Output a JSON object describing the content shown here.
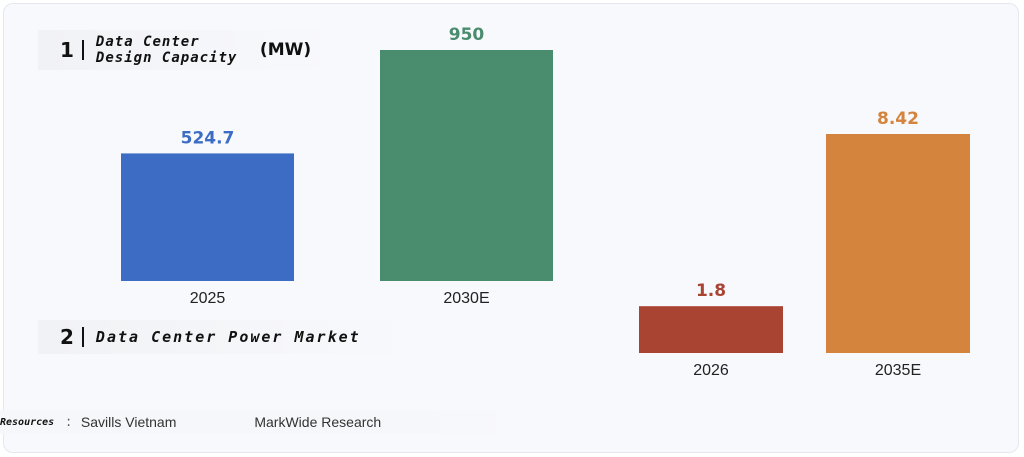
{
  "sections": {
    "one": {
      "number": "1",
      "title": "Data Center Design Capacity",
      "unit": "(MW)"
    },
    "two": {
      "number": "2",
      "title": "Data Center Power Market"
    }
  },
  "sources": {
    "label": "Resources",
    "separator": ":",
    "items": [
      "Savills Vietnam",
      "MarkWide Research"
    ]
  },
  "chart_data": [
    {
      "type": "bar",
      "title": "Data Center Design Capacity",
      "ylabel": "(MW)",
      "categories": [
        "2025",
        "2030E"
      ],
      "values": [
        524.7,
        950
      ],
      "value_labels": [
        "524.7",
        "950"
      ],
      "colors": [
        "#3d6cc4",
        "#4a8c6e"
      ],
      "ylim": [
        0,
        950
      ],
      "grid": false
    },
    {
      "type": "bar",
      "title": "Data Center Power Market",
      "categories": [
        "2026",
        "2035E"
      ],
      "values": [
        1.8,
        8.42
      ],
      "value_labels": [
        "1.8",
        "8.42"
      ],
      "colors": [
        "#a94433",
        "#d4843d"
      ],
      "ylim": [
        0,
        8.42
      ],
      "grid": false
    }
  ]
}
